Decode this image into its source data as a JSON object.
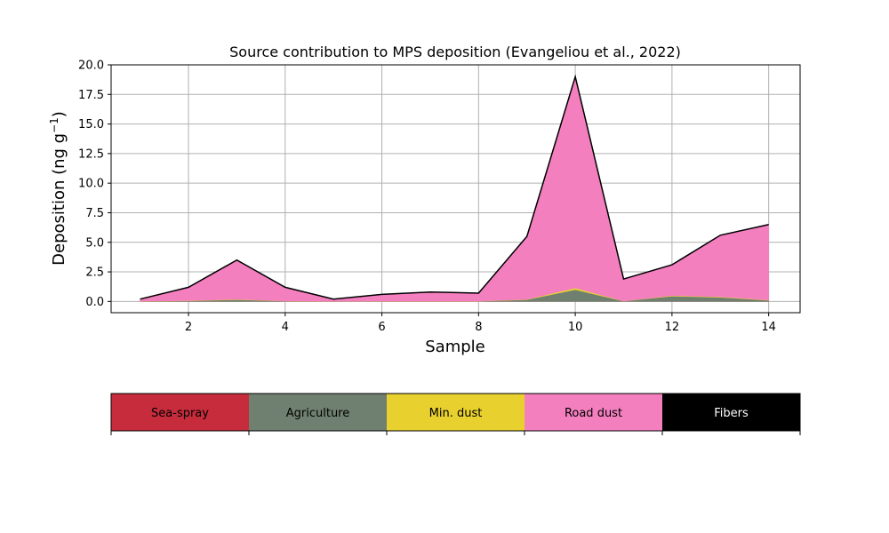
{
  "chart_data": {
    "type": "area",
    "stacked": true,
    "title": "Source contribution to MPS deposition (Evangeliou et al., 2022)",
    "xlabel": "Sample",
    "ylabel_main": "Deposition (ng g",
    "ylabel_sup": "−1",
    "ylabel_close": ")",
    "xlim": [
      0.4,
      14.65
    ],
    "ylim": [
      -0.95,
      20.0
    ],
    "x_ticks": [
      2,
      4,
      6,
      8,
      10,
      12,
      14
    ],
    "x_tick_labels": [
      "2",
      "4",
      "6",
      "8",
      "10",
      "12",
      "14"
    ],
    "y_ticks": [
      0,
      2.5,
      5,
      7.5,
      10,
      12.5,
      15,
      17.5,
      20
    ],
    "y_tick_labels": [
      "0.0",
      "2.5",
      "5.0",
      "7.5",
      "10.0",
      "12.5",
      "15.0",
      "17.5",
      "20.0"
    ],
    "grid": true,
    "x": [
      1,
      2,
      3,
      4,
      5,
      6,
      7,
      8,
      9,
      10,
      11,
      12,
      13,
      14
    ],
    "series": [
      {
        "name": "Sea-spray",
        "color": "#c62c3b",
        "values": [
          0,
          0,
          0,
          0,
          0,
          0,
          0,
          0,
          0,
          0,
          0,
          0,
          0,
          0
        ]
      },
      {
        "name": "Agriculture",
        "color": "#6f8070",
        "values": [
          0.02,
          0.05,
          0.15,
          0.03,
          0.01,
          0.02,
          0.02,
          0.02,
          0.15,
          1.0,
          0.03,
          0.45,
          0.35,
          0.1
        ]
      },
      {
        "name": "Min. dust",
        "color": "#e8d12f",
        "values": [
          0.01,
          0.02,
          0.04,
          0.01,
          0.01,
          0.01,
          0.01,
          0.01,
          0.03,
          0.15,
          0.01,
          0.05,
          0.05,
          0.03
        ]
      },
      {
        "name": "Road dust",
        "color": "#f37fbf",
        "values": [
          0.17,
          1.13,
          3.31,
          1.16,
          0.18,
          0.57,
          0.77,
          0.67,
          5.32,
          17.85,
          1.86,
          2.6,
          5.2,
          6.37
        ]
      },
      {
        "name": "Fibers",
        "color": "#000000",
        "values": [
          0,
          0,
          0,
          0,
          0,
          0,
          0,
          0,
          0,
          0,
          0,
          0,
          0,
          0
        ]
      }
    ],
    "legend": {
      "placement": "below",
      "entries": [
        "Sea-spray",
        "Agriculture",
        "Min. dust",
        "Road dust",
        "Fibers"
      ]
    }
  }
}
